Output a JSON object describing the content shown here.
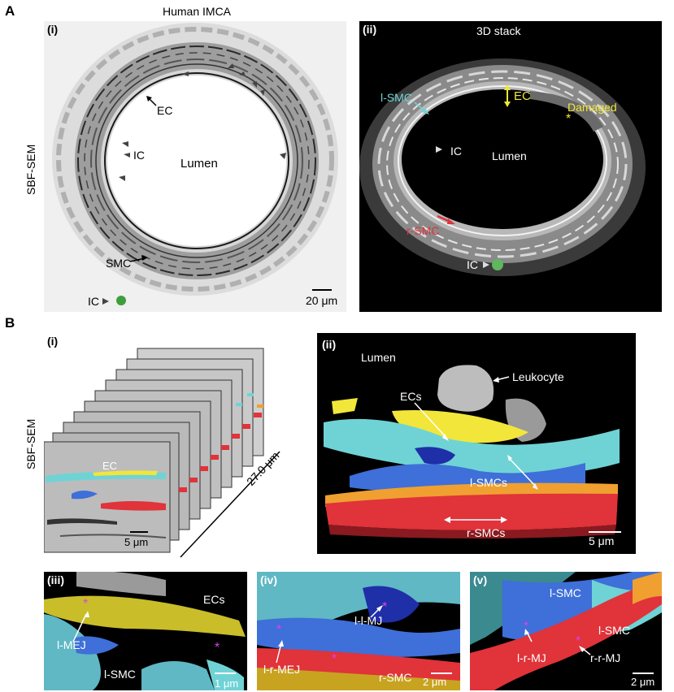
{
  "panel_A": {
    "letter": "A",
    "side_label": "SBF-SEM",
    "i": {
      "tag": "(i)",
      "title": "Human IMCA",
      "labels": {
        "ec": "EC",
        "ic1": "IC",
        "lumen": "Lumen",
        "smc": "SMC",
        "ic2": "IC"
      },
      "scale_bar": "20 μm"
    },
    "ii": {
      "tag": "(ii)",
      "title": "3D stack",
      "labels": {
        "lsmc": "l-SMC",
        "ec": "EC",
        "damaged": "Damaged",
        "asterisk": "*",
        "ic1": "IC",
        "lumen": "Lumen",
        "rsmc": "r-SMC",
        "ic2": "IC"
      }
    }
  },
  "panel_B": {
    "letter": "B",
    "side_label": "SBF-SEM",
    "i": {
      "tag": "(i)",
      "ec": "EC",
      "scale_bar": "5 μm",
      "depth": "27.0 μm"
    },
    "ii": {
      "tag": "(ii)",
      "lumen": "Lumen",
      "leukocyte": "Leukocyte",
      "ecs": "ECs",
      "lsmcs": "l-SMCs",
      "rsmcs": "r-SMCs",
      "scale_bar": "5 μm"
    },
    "iii": {
      "tag": "(iii)",
      "ecs": "ECs",
      "lmej": "l-MEJ",
      "lsmc": "l-SMC",
      "scale_bar": "1 μm"
    },
    "iv": {
      "tag": "(iv)",
      "llmj": "l-l-MJ",
      "lrmej": "l-r-MEJ",
      "rsmc": "r-SMC",
      "scale_bar": "2 μm"
    },
    "v": {
      "tag": "(v)",
      "lsmc1": "l-SMC",
      "lsmc2": "l-SMC",
      "lrmj": "l-r-MJ",
      "rrmj": "r-r-MJ",
      "scale_bar": "2 μm"
    }
  },
  "colors": {
    "yellow": "#f2e63a",
    "cyan": "#6fd3d6",
    "blue": "#3f6fd8",
    "red": "#e0333a",
    "orange": "#f0a030",
    "magenta": "#e040e8"
  }
}
